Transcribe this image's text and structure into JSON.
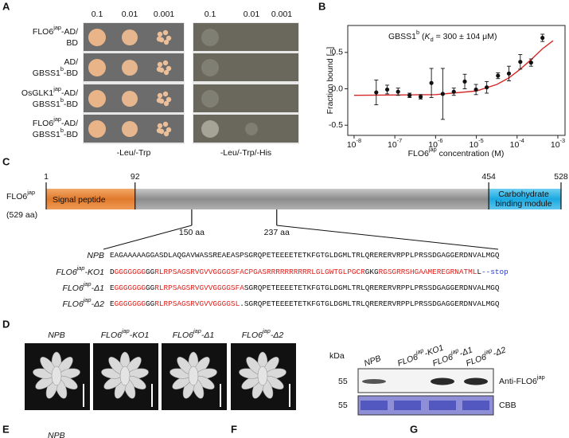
{
  "panel_a": {
    "label": "A",
    "left_dilutions": [
      "0.1",
      "0.01",
      "0.001"
    ],
    "right_dilutions": [
      "0.1",
      "0.01",
      "0.001"
    ],
    "rows": [
      {
        "line1": [
          {
            "text": "FLO6"
          },
          {
            "text": "jap",
            "style": "sup"
          },
          {
            "text": "-AD/"
          }
        ],
        "line2": [
          {
            "text": "BD"
          }
        ]
      },
      {
        "line1": [
          {
            "text": "AD/"
          }
        ],
        "line2": [
          {
            "text": "GBSS1"
          },
          {
            "text": "b",
            "style": "sup"
          },
          {
            "text": "-BD"
          }
        ]
      },
      {
        "line1": [
          {
            "text": "OsGLK1"
          },
          {
            "text": "jap",
            "style": "sup"
          },
          {
            "text": "-AD/"
          }
        ],
        "line2": [
          {
            "text": "GBSS1"
          },
          {
            "text": "b",
            "style": "sup"
          },
          {
            "text": "-BD"
          }
        ]
      },
      {
        "line1": [
          {
            "text": "FLO6"
          },
          {
            "text": "jap",
            "style": "sup"
          },
          {
            "text": "-AD/"
          }
        ],
        "line2": [
          {
            "text": "GBSS1"
          },
          {
            "text": "b",
            "style": "sup"
          },
          {
            "text": "-BD"
          }
        ]
      }
    ],
    "left_medium": "-Leu/-Trp",
    "right_medium": "-Leu/-Trp/-His"
  },
  "panel_b": {
    "label": "B",
    "chart_data": {
      "type": "scatter",
      "annotation": [
        {
          "text": "GBSS1"
        },
        {
          "text": "b",
          "style": "sup"
        },
        {
          "text": " ("
        },
        {
          "text": "K",
          "style": "italic"
        },
        {
          "text": "d",
          "style": "sub"
        },
        {
          "text": " = 300 ± 104 μM)"
        }
      ],
      "xlabel": [
        {
          "text": "FLO6"
        },
        {
          "text": "jap",
          "style": "sup"
        },
        {
          "text": " concentration (M)"
        }
      ],
      "ylabel": "Fraction bound [–]",
      "x_scale": "log",
      "xlim": [
        7e-09,
        0.0015
      ],
      "ylim": [
        -0.64,
        0.87
      ],
      "xticks": [
        {
          "value": 1e-08,
          "label": [
            {
              "text": "10"
            },
            {
              "text": "-8",
              "style": "sup"
            }
          ]
        },
        {
          "value": 1e-07,
          "label": [
            {
              "text": "10"
            },
            {
              "text": "-7",
              "style": "sup"
            }
          ]
        },
        {
          "value": 1e-06,
          "label": [
            {
              "text": "10"
            },
            {
              "text": "-6",
              "style": "sup"
            }
          ]
        },
        {
          "value": 1e-05,
          "label": [
            {
              "text": "10"
            },
            {
              "text": "-5",
              "style": "sup"
            }
          ]
        },
        {
          "value": 0.0001,
          "label": [
            {
              "text": "10"
            },
            {
              "text": "-4",
              "style": "sup"
            }
          ]
        },
        {
          "value": 0.001,
          "label": [
            {
              "text": "10"
            },
            {
              "text": "-3",
              "style": "sup"
            }
          ]
        }
      ],
      "yticks": [
        {
          "value": -0.5,
          "label": "-0.5"
        },
        {
          "value": 0,
          "label": "0.0"
        },
        {
          "value": 0.5,
          "label": "0.5"
        }
      ],
      "points": {
        "color": "#111111",
        "x": [
          3.5e-08,
          6.5e-08,
          1.2e-07,
          2.3e-07,
          4.3e-07,
          7.9e-07,
          1.5e-06,
          2.8e-06,
          5.2e-06,
          9.8e-06,
          1.8e-05,
          3.4e-05,
          6.3e-05,
          0.00012,
          0.00022,
          0.00042
        ],
        "values": [
          -0.05,
          -0.01,
          -0.04,
          -0.09,
          -0.11,
          0.08,
          -0.07,
          -0.04,
          0.1,
          -0.01,
          0.02,
          0.18,
          0.21,
          0.37,
          0.36,
          0.7
        ],
        "errors": [
          0.17,
          0.06,
          0.05,
          0.03,
          0.03,
          0.2,
          0.35,
          0.05,
          0.1,
          0.07,
          0.08,
          0.04,
          0.1,
          0.1,
          0.05,
          0.05
        ]
      },
      "fit": {
        "color": "#d62728",
        "x": [
          1e-08,
          1e-06,
          1e-05,
          3.2e-05,
          6.3e-05,
          0.00012,
          0.00022,
          0.00042,
          0.00076
        ],
        "values": [
          -0.09,
          -0.08,
          -0.03,
          0.06,
          0.15,
          0.27,
          0.4,
          0.55,
          0.66
        ]
      }
    }
  },
  "panel_c": {
    "label": "C",
    "protein": [
      {
        "text": "FLO6"
      },
      {
        "text": "jap",
        "style": "sup"
      }
    ],
    "length": "(529 aa)",
    "positions": [
      1,
      92,
      454,
      528
    ],
    "signal_peptide": "Signal peptide",
    "cbm": [
      "Carbohydrate",
      "binding module"
    ],
    "sites": [
      {
        "value": 150,
        "label": "150 aa"
      },
      {
        "value": 237,
        "label": "237 aa"
      }
    ],
    "sequences": [
      {
        "name": [
          {
            "text": "NPB"
          }
        ],
        "seq": [
          {
            "text": "EAGAAAAAGGASDLAQGAVWASSREAEASPSGRQPETEEEETETKFGTGLDGMLTRLQRERERVRPPLPRSSDGAGGERDNVALMGQ"
          }
        ]
      },
      {
        "name": [
          {
            "text": "FLO6"
          },
          {
            "text": "jap",
            "style": "sup"
          },
          {
            "text": "-KO1"
          }
        ],
        "seq": [
          {
            "text": "D"
          },
          {
            "text": "GGGGGGG",
            "color": "#e0201c"
          },
          {
            "text": "GG"
          },
          {
            "text": "RLRPSAGSRVGVVGGGGSFACPGASRRRRRRRRRRLGLGWTGLPGCR",
            "color": "#e0201c"
          },
          {
            "text": "GKG"
          },
          {
            "text": "RGSGRRSHGAAMEREGRNATML",
            "color": "#e0201c"
          },
          {
            "text": "L"
          },
          {
            "text": "--stop",
            "color": "#2a3bd1"
          }
        ]
      },
      {
        "name": [
          {
            "text": "FLO6"
          },
          {
            "text": "jap",
            "style": "sup"
          },
          {
            "text": "-Δ1"
          }
        ],
        "seq": [
          {
            "text": "E"
          },
          {
            "text": "GGGGGGG",
            "color": "#e0201c"
          },
          {
            "text": "GG"
          },
          {
            "text": "RLRPSAGSRVGVVGGGGSFA",
            "color": "#e0201c"
          },
          {
            "text": "SGRQPETEEEETETKFGTGLDGMLTRLQRERERVRPPLPRSSDGAGGERDNVALMGQ"
          }
        ]
      },
      {
        "name": [
          {
            "text": "FLO6"
          },
          {
            "text": "jap",
            "style": "sup"
          },
          {
            "text": "-Δ2"
          }
        ],
        "seq": [
          {
            "text": "E"
          },
          {
            "text": "GGGGGGG",
            "color": "#e0201c"
          },
          {
            "text": "GG"
          },
          {
            "text": "RLRPSAGSRVGVVGGGGSL",
            "color": "#e0201c"
          },
          {
            "text": "."
          },
          {
            "text": "SGRQPETEEEETETKFGTGLDGMLTRLQRERERVRPPLPRSSDGAGGERDNVALMGQ"
          }
        ]
      }
    ]
  },
  "panel_d": {
    "label": "D",
    "lines": [
      [
        {
          "text": "NPB"
        }
      ],
      [
        {
          "text": "FLO6"
        },
        {
          "text": "jap",
          "style": "sup"
        },
        {
          "text": "-KO1"
        }
      ],
      [
        {
          "text": "FLO6"
        },
        {
          "text": "jap",
          "style": "sup"
        },
        {
          "text": "-Δ1"
        }
      ],
      [
        {
          "text": "FLO6"
        },
        {
          "text": "jap",
          "style": "sup"
        },
        {
          "text": "-Δ2"
        }
      ]
    ],
    "blot": {
      "unit": "kDa",
      "markers": [
        55,
        55
      ],
      "lanes": [
        [
          {
            "text": "NPB"
          }
        ],
        [
          {
            "text": "FLO6"
          },
          {
            "text": "jap",
            "style": "sup"
          },
          {
            "text": "-KO1"
          }
        ],
        [
          {
            "text": "FLO6"
          },
          {
            "text": "jap",
            "style": "sup"
          },
          {
            "text": "-Δ1"
          }
        ],
        [
          {
            "text": "FLO6"
          },
          {
            "text": "jap",
            "style": "sup"
          },
          {
            "text": "-Δ2"
          }
        ]
      ],
      "antibody": [
        {
          "text": "Anti-FLO6"
        },
        {
          "text": "jap",
          "style": "sup"
        }
      ],
      "loading": "CBB"
    }
  },
  "panel_e": {
    "label": "E",
    "sample": "NPB"
  },
  "panel_f": {
    "label": "F"
  },
  "panel_g": {
    "label": "G"
  }
}
